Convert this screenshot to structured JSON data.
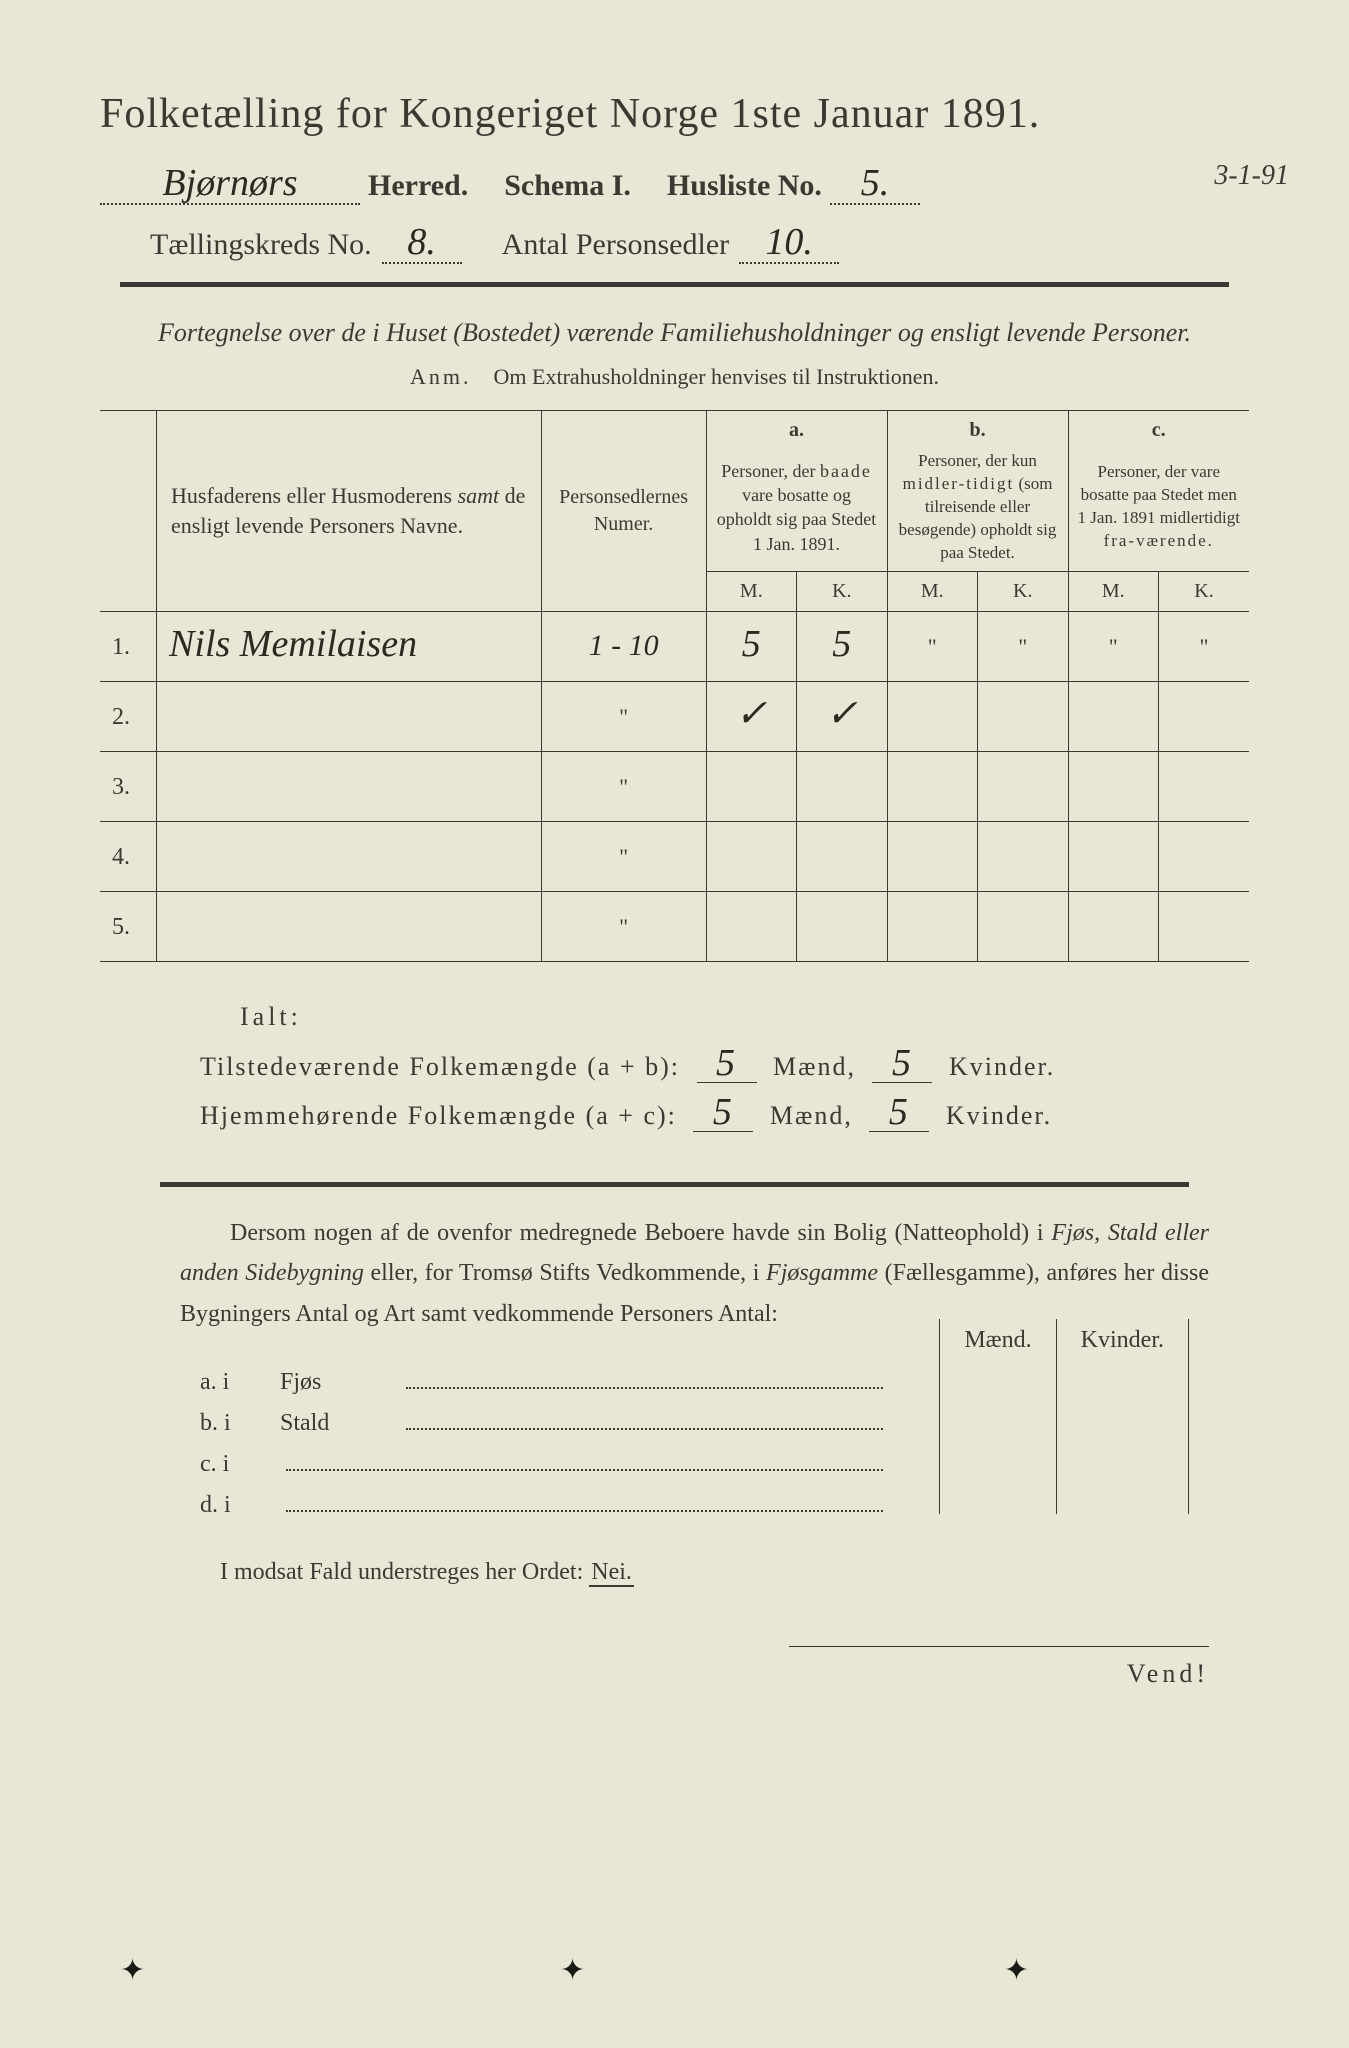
{
  "title_main": "Folketælling for Kongeriget Norge 1ste Januar 1891.",
  "line2": {
    "herred_value": "Bjørnørs",
    "herred_label": "Herred.",
    "schema_label": "Schema I.",
    "husliste_label": "Husliste No.",
    "husliste_value": "5."
  },
  "date_side": "3-1-91",
  "line3": {
    "kreds_label": "Tællingskreds No.",
    "kreds_value": "8.",
    "antal_label": "Antal Personsedler",
    "antal_value": "10."
  },
  "subtitle": "Fortegnelse over de i Huset (Bostedet) værende Familiehusholdninger og ensligt levende Personer.",
  "anm_prefix": "Anm.",
  "anm_text": "Om Extrahusholdninger henvises til Instruktionen.",
  "table": {
    "col1": "Husfaderens eller Husmoderens samt de ensligt levende Personers Navne.",
    "col1_italic_word": "samt",
    "col2": "Personsedlernes Numer.",
    "colA_letter": "a.",
    "colA": "Personer, der baade vare bosatte og opholdt sig paa Stedet 1 Jan. 1891.",
    "colB_letter": "b.",
    "colB": "Personer, der kun midlertidigt (som tilreisende eller besøgende) opholdt sig paa Stedet.",
    "colC_letter": "c.",
    "colC": "Personer, der vare bosatte paa Stedet men 1 Jan. 1891 midlertidigt fraværende.",
    "M": "M.",
    "K": "K.",
    "rows": [
      {
        "n": "1.",
        "name": "Nils Memilaisen",
        "sedler": "1 - 10",
        "aM": "5",
        "aK": "5",
        "bM": "\"",
        "bK": "\"",
        "cM": "\"",
        "cK": "\""
      },
      {
        "n": "2.",
        "name": "",
        "sedler": "\"",
        "aM": "✓",
        "aK": "✓",
        "bM": "",
        "bK": "",
        "cM": "",
        "cK": ""
      },
      {
        "n": "3.",
        "name": "",
        "sedler": "\"",
        "aM": "",
        "aK": "",
        "bM": "",
        "bK": "",
        "cM": "",
        "cK": ""
      },
      {
        "n": "4.",
        "name": "",
        "sedler": "\"",
        "aM": "",
        "aK": "",
        "bM": "",
        "bK": "",
        "cM": "",
        "cK": ""
      },
      {
        "n": "5.",
        "name": "",
        "sedler": "\"",
        "aM": "",
        "aK": "",
        "bM": "",
        "bK": "",
        "cM": "",
        "cK": ""
      }
    ]
  },
  "ialt": {
    "label": "Ialt:",
    "line1_pre": "Tilstedeværende Folkemængde (a + b):",
    "line2_pre": "Hjemmehørende Folkemængde (a + c):",
    "maend": "Mænd,",
    "kvinder": "Kvinder.",
    "v1m": "5",
    "v1k": "5",
    "v2m": "5",
    "v2k": "5"
  },
  "para_text": "Dersom nogen af de ovenfor medregnede Beboere havde sin Bolig (Natteophold) i Fjøs, Stald eller anden Sidebygning eller, for Tromsø Stifts Vedkommende, i Fjøsgamme (Fællesgamme), anføres her disse Bygningers Antal og Art samt vedkommende Personers Antal:",
  "abcd": {
    "a": "a.  i",
    "a2": "Fjøs",
    "b": "b.  i",
    "b2": "Stald",
    "c": "c.  i",
    "d": "d.  i",
    "maend": "Mænd.",
    "kvinder": "Kvinder."
  },
  "nei_line_pre": "I modsat Fald understreges her Ordet:",
  "nei_word": "Nei.",
  "vend": "Vend!",
  "colors": {
    "paper": "#e8e6d4",
    "ink": "#3a3a32",
    "hand": "#2a2a20"
  }
}
